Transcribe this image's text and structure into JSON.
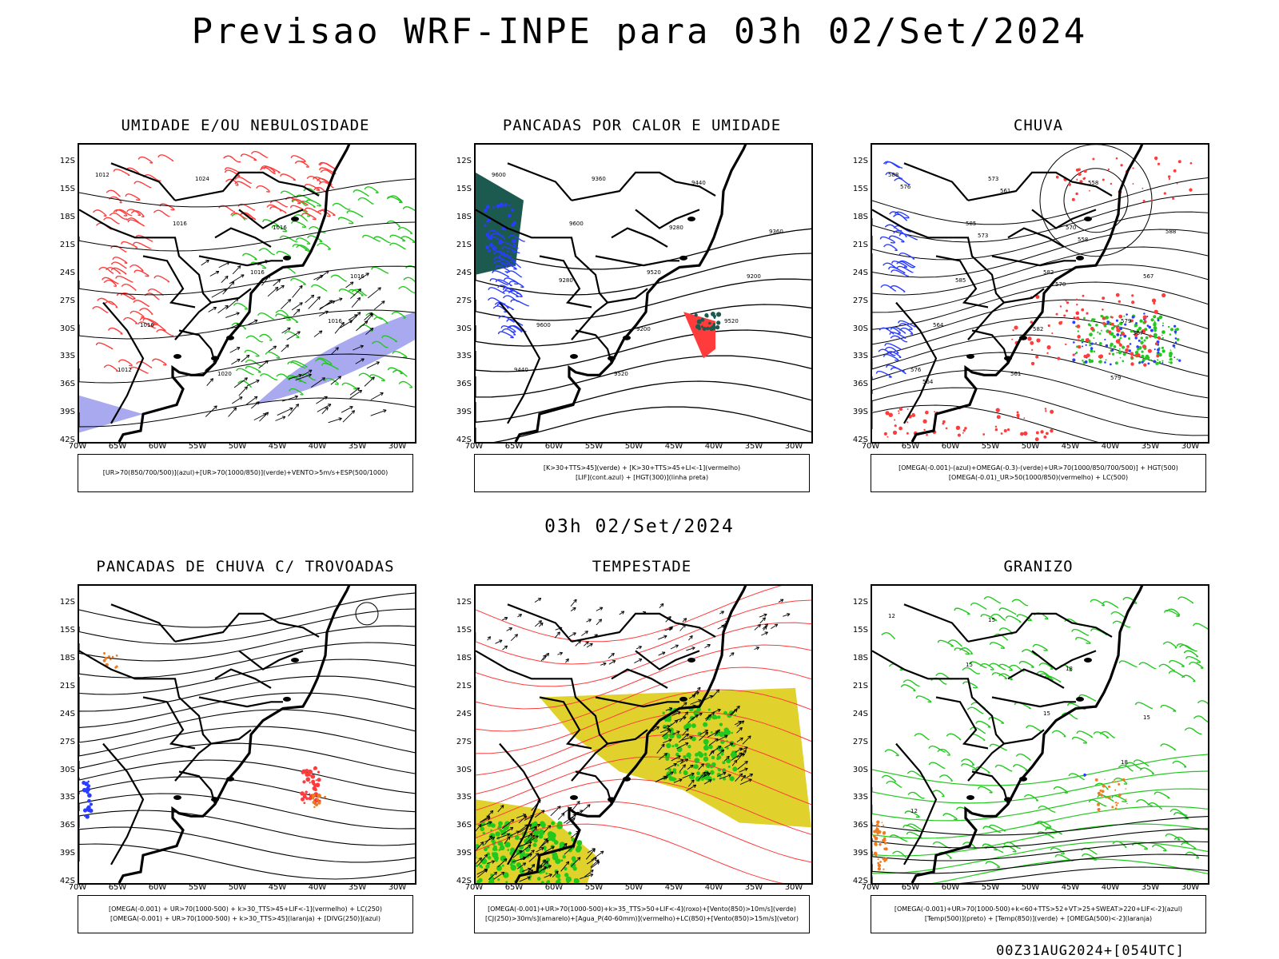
{
  "title": "Previsao WRF-INPE  para 03h 02/Set/2024",
  "subtitle": "03h 02/Set/2024",
  "run_stamp": "00Z31AUG2024+[054UTC]",
  "lat_ticks": [
    "12S",
    "15S",
    "18S",
    "21S",
    "24S",
    "27S",
    "30S",
    "33S",
    "36S",
    "39S",
    "42S"
  ],
  "lon_ticks": [
    "70W",
    "65W",
    "60W",
    "55W",
    "50W",
    "45W",
    "40W",
    "35W",
    "30W"
  ],
  "colors": {
    "red": "#ff3b3b",
    "green": "#22c81e",
    "blue": "#2a3cff",
    "lavender": "#a9a9f0",
    "yellow": "#e0d12c",
    "orange": "#f07b1e",
    "teal": "#1c5a50"
  },
  "panels": [
    {
      "id": "umidade",
      "title": "UMIDADE E/OU NEBULOSIDADE",
      "legend": [
        "[UR>70(850/700/500)](azul)+[UR>70(1000/850)](verde)+VENTO>5m/s+ESP(500/1000)"
      ],
      "contour_labels": [
        "1012",
        "1016",
        "1016",
        "1016",
        "1012",
        "1024",
        "1016",
        "1016",
        "1016",
        "1020"
      ]
    },
    {
      "id": "pancadas-calor",
      "title": "PANCADAS POR CALOR E UMIDADE",
      "legend": [
        "[K>30+TTS>45](verde) + [K>30+TTS>45+LI<-1](vermelho)",
        "[LIF](cont.azul) + [HGT(300)](linha preta)"
      ],
      "contour_labels": [
        "9600",
        "9600",
        "9520",
        "9520",
        "9440",
        "9360",
        "9280",
        "9200",
        "9600",
        "9520",
        "9440",
        "9360",
        "9280",
        "9200"
      ]
    },
    {
      "id": "chuva",
      "title": "CHUVA",
      "legend": [
        "[OMEGA(-0.001)-(azul)+OMEGA(-0.3)-(verde)+UR>70(1000/850/700/500)] + HGT(500)",
        "[OMEGA(-0.01)_UR>50(1000/850)(vermelho) + LC(500)"
      ],
      "contour_labels": [
        "588",
        "585",
        "582",
        "579",
        "576",
        "573",
        "570",
        "567",
        "564",
        "561",
        "558",
        "588",
        "585",
        "582",
        "579",
        "576",
        "573",
        "570",
        "567",
        "564",
        "561",
        "558"
      ]
    },
    {
      "id": "pancadas-trovoadas",
      "title": "PANCADAS DE CHUVA C/ TROVOADAS",
      "legend": [
        "[OMEGA(-0.001) + UR>70(1000-500) + k>30_TTS>45+LIF<-1](vermelho) + LC(250)",
        "[OMEGA(-0.001) + UR>70(1000-500) + k>30_TTS>45](laranja) + [DIVG(250)](azul)"
      ],
      "contour_labels": []
    },
    {
      "id": "tempestade",
      "title": "TEMPESTADE",
      "legend": [
        "[OMEGA(-0.001)+UR>70(1000-500)+k>35_TTS>50+LIF<-4](roxo)+[Vento(850)>10m/s](verde)",
        "[CJ(250)>30m/s](amarelo)+[Agua_P(40-60mm)](vermelho)+LC(850)+[Vento(850)>15m/s](vetor)"
      ],
      "contour_labels": []
    },
    {
      "id": "granizo",
      "title": "GRANIZO",
      "legend": [
        "[OMEGA(-0.001)+UR>70(1000-500)+k<60+TTS>52+VT>25+SWEAT>220+LIF<-2](azul)",
        "[Temp(500)](preto) + [Temp(850)](verde) + [OMEGA(500)<-2](laranja)"
      ],
      "contour_labels": [
        "12",
        "15",
        "15",
        "18",
        "12",
        "15",
        "18",
        "15"
      ]
    }
  ]
}
